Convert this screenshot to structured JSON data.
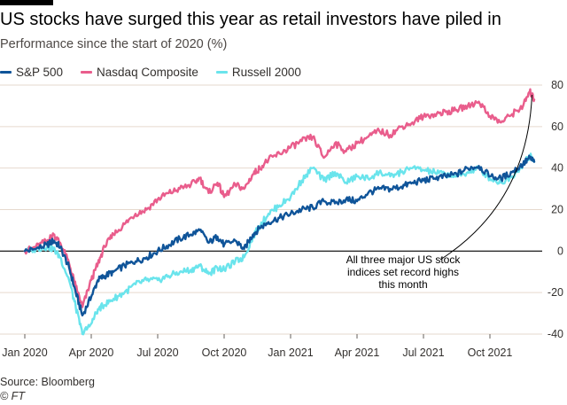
{
  "header": {
    "title": "US stocks have surged this year as retail investors have piled in",
    "subtitle": "Performance since the start of 2020 (%)"
  },
  "footer": {
    "source": "Source: Bloomberg",
    "credit": "© FT"
  },
  "colors": {
    "sp500": "#0f5499",
    "nasdaq": "#e95d8c",
    "russell": "#6ae4ec",
    "grid": "#e6d9ce",
    "zero": "#000000"
  },
  "chart_data": {
    "type": "line",
    "title": "US stocks have surged this year as retail investors have piled in",
    "subtitle": "Performance since the start of 2020 (%)",
    "xlabel": "",
    "ylabel": "Performance since the start of 2020 (%)",
    "ylim": [
      -40,
      80
    ],
    "yticks": [
      -40,
      -20,
      0,
      20,
      40,
      60,
      80
    ],
    "xlim": [
      0,
      23.2
    ],
    "xticks": [
      {
        "x": 0,
        "label": "Jan 2020"
      },
      {
        "x": 3,
        "label": "Apr 2020"
      },
      {
        "x": 6,
        "label": "Jul 2020"
      },
      {
        "x": 9,
        "label": "Oct 2020"
      },
      {
        "x": 12,
        "label": "Jan 2021"
      },
      {
        "x": 15,
        "label": "Apr 2021"
      },
      {
        "x": 18,
        "label": "Jul 2021"
      },
      {
        "x": 21,
        "label": "Oct 2021"
      }
    ],
    "x_unit": "months since 1 Jan 2020",
    "legend_position": "top-left",
    "grid": true,
    "annotation": {
      "lines": [
        "All three major US stock",
        "indices set record highs",
        "this month"
      ],
      "points_to": {
        "x": 22.9,
        "y": 77
      }
    },
    "series": [
      {
        "name": "S&P 500",
        "color": "#0f5499",
        "x": [
          0,
          0.5,
          1.0,
          1.3,
          1.6,
          2.0,
          2.3,
          2.6,
          3.0,
          3.3,
          3.6,
          4.0,
          4.5,
          5.0,
          5.5,
          6.0,
          6.5,
          7.0,
          7.5,
          7.9,
          8.3,
          8.7,
          9.0,
          9.5,
          9.9,
          10.3,
          10.6,
          11.0,
          11.5,
          12.0,
          12.5,
          13.0,
          13.5,
          14.0,
          14.5,
          15.0,
          15.5,
          16.0,
          16.5,
          17.0,
          17.5,
          18.0,
          18.5,
          19.0,
          19.5,
          20.0,
          20.5,
          21.0,
          21.5,
          22.0,
          22.5,
          22.8,
          23.0
        ],
        "y": [
          0,
          1,
          3,
          5,
          2,
          -8,
          -20,
          -31,
          -22,
          -14,
          -12,
          -10,
          -7,
          -5,
          -3,
          0,
          3,
          6,
          8,
          10,
          4,
          7,
          3,
          5,
          1,
          8,
          11,
          14,
          16,
          18,
          20,
          21,
          24,
          23,
          25,
          24,
          28,
          30,
          30,
          31,
          33,
          34,
          35,
          36,
          37,
          40,
          41,
          36,
          35,
          38,
          42,
          45,
          43
        ]
      },
      {
        "name": "Nasdaq Composite",
        "color": "#e95d8c",
        "x": [
          0,
          0.5,
          1.0,
          1.3,
          1.6,
          2.0,
          2.3,
          2.6,
          3.0,
          3.3,
          3.6,
          4.0,
          4.5,
          5.0,
          5.5,
          6.0,
          6.5,
          7.0,
          7.5,
          7.9,
          8.3,
          8.7,
          9.0,
          9.5,
          9.9,
          10.3,
          10.6,
          11.0,
          11.5,
          12.0,
          12.5,
          13.0,
          13.5,
          14.0,
          14.5,
          15.0,
          15.5,
          16.0,
          16.5,
          17.0,
          17.5,
          18.0,
          18.5,
          19.0,
          19.5,
          20.0,
          20.5,
          21.0,
          21.5,
          22.0,
          22.5,
          22.8,
          23.0
        ],
        "y": [
          0,
          2,
          5,
          8,
          4,
          -6,
          -17,
          -27,
          -14,
          -6,
          2,
          8,
          13,
          18,
          20,
          25,
          28,
          30,
          32,
          35,
          28,
          33,
          26,
          32,
          30,
          37,
          40,
          44,
          47,
          50,
          53,
          55,
          45,
          52,
          48,
          52,
          55,
          58,
          56,
          60,
          62,
          65,
          66,
          67,
          68,
          70,
          72,
          65,
          62,
          66,
          70,
          77,
          73
        ]
      },
      {
        "name": "Russell 2000",
        "color": "#6ae4ec",
        "x": [
          0,
          0.5,
          1.0,
          1.3,
          1.6,
          2.0,
          2.3,
          2.6,
          3.0,
          3.3,
          3.6,
          4.0,
          4.5,
          5.0,
          5.5,
          6.0,
          6.5,
          7.0,
          7.5,
          7.9,
          8.3,
          8.7,
          9.0,
          9.5,
          9.9,
          10.3,
          10.6,
          11.0,
          11.5,
          12.0,
          12.5,
          13.0,
          13.5,
          14.0,
          14.5,
          15.0,
          15.5,
          16.0,
          16.5,
          17.0,
          17.5,
          18.0,
          18.5,
          19.0,
          19.5,
          20.0,
          20.5,
          21.0,
          21.5,
          22.0,
          22.5,
          22.8,
          23.0
        ],
        "y": [
          0,
          1,
          2,
          1,
          -3,
          -14,
          -27,
          -40,
          -35,
          -28,
          -26,
          -23,
          -20,
          -16,
          -14,
          -14,
          -12,
          -10,
          -9,
          -7,
          -11,
          -8,
          -9,
          -5,
          -3,
          7,
          12,
          18,
          22,
          26,
          34,
          40,
          34,
          38,
          33,
          36,
          35,
          38,
          36,
          38,
          40,
          39,
          38,
          37,
          36,
          38,
          40,
          35,
          33,
          36,
          42,
          46,
          43
        ]
      }
    ]
  }
}
